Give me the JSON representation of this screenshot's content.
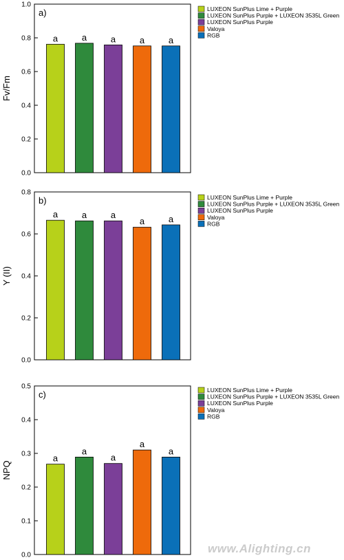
{
  "legend": [
    {
      "label": "LUXEON SunPlus Lime + Purple",
      "color": "#b7d11a"
    },
    {
      "label": "LUXEON SunPlus Purple + LUXEON 3535L Green",
      "color": "#2f8a3c"
    },
    {
      "label": "LUXEON SunPlus Purple",
      "color": "#7b3f98"
    },
    {
      "label": "Valoya",
      "color": "#ee6a0b"
    },
    {
      "label": "RGB",
      "color": "#0a70b8"
    }
  ],
  "watermark": "www.Alighting.cn",
  "chart_data": [
    {
      "type": "bar",
      "panel_label": "a)",
      "ylabel": "Fv/Fm",
      "ylim": [
        0,
        1.0
      ],
      "yticks": [
        "0.0",
        "0.2",
        "0.4",
        "0.6",
        "0.8",
        "1.0"
      ],
      "ytick_values": [
        0,
        0.2,
        0.4,
        0.6,
        0.8,
        1.0
      ],
      "values": [
        0.762,
        0.768,
        0.758,
        0.752,
        0.752
      ],
      "significance": [
        "a",
        "a",
        "a",
        "a",
        "a"
      ],
      "grid": false,
      "legend_position": "right"
    },
    {
      "type": "bar",
      "panel_label": "b)",
      "ylabel": "Y (II)",
      "ylim": [
        0,
        0.8
      ],
      "yticks": [
        "0.0",
        "0.2",
        "0.4",
        "0.6",
        "0.8"
      ],
      "ytick_values": [
        0,
        0.2,
        0.4,
        0.6,
        0.8
      ],
      "values": [
        0.665,
        0.662,
        0.662,
        0.632,
        0.643
      ],
      "significance": [
        "a",
        "a",
        "a",
        "a",
        "a"
      ],
      "grid": false,
      "legend_position": "right"
    },
    {
      "type": "bar",
      "panel_label": "c)",
      "ylabel": "NPQ",
      "ylim": [
        0,
        0.5
      ],
      "yticks": [
        "0.0",
        "0.1",
        "0.2",
        "0.3",
        "0.4",
        "0.5"
      ],
      "ytick_values": [
        0,
        0.1,
        0.2,
        0.3,
        0.4,
        0.5
      ],
      "values": [
        0.268,
        0.289,
        0.27,
        0.31,
        0.289
      ],
      "significance": [
        "a",
        "a",
        "a",
        "a",
        "a"
      ],
      "grid": false,
      "legend_position": "right"
    }
  ]
}
